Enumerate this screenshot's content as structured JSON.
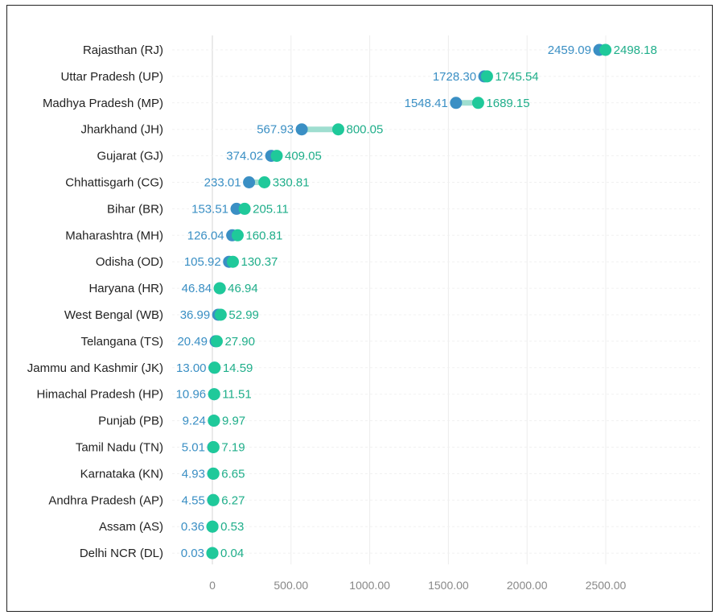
{
  "chart_data": {
    "type": "dumbbell",
    "title": "",
    "xlabel": "",
    "ylabel": "",
    "xlim": [
      0,
      2900
    ],
    "x_ticks": [
      0,
      500,
      1000,
      1500,
      2000,
      2500
    ],
    "x_tick_labels": [
      "0",
      "500.00",
      "1000.00",
      "1500.00",
      "2000.00",
      "2500.00"
    ],
    "grid": true,
    "colors": {
      "start": "#3a8fc4",
      "end": "#1fc99a",
      "connector": "#9fded0",
      "start_label": "#3a8fc4",
      "end_label": "#1fae8a"
    },
    "categories": [
      "Rajasthan (RJ)",
      "Uttar Pradesh (UP)",
      "Madhya Pradesh (MP)",
      "Jharkhand (JH)",
      "Gujarat (GJ)",
      "Chhattisgarh (CG)",
      "Bihar (BR)",
      "Maharashtra (MH)",
      "Odisha (OD)",
      "Haryana (HR)",
      "West Bengal (WB)",
      "Telangana (TS)",
      "Jammu and Kashmir (JK)",
      "Himachal Pradesh (HP)",
      "Punjab (PB)",
      "Tamil Nadu (TN)",
      "Karnataka (KN)",
      "Andhra Pradesh (AP)",
      "Assam (AS)",
      "Delhi NCR (DL)"
    ],
    "series": [
      {
        "values": [
          2459.09,
          1728.3,
          1548.41,
          567.93,
          374.02,
          233.01,
          153.51,
          126.04,
          105.92,
          46.84,
          36.99,
          20.49,
          13.0,
          10.96,
          9.24,
          5.01,
          4.93,
          4.55,
          0.36,
          0.03
        ],
        "labels": [
          "2459.09",
          "1728.30",
          "1548.41",
          "567.93",
          "374.02",
          "233.01",
          "153.51",
          "126.04",
          "105.92",
          "46.84",
          "36.99",
          "20.49",
          "13.00",
          "10.96",
          "9.24",
          "5.01",
          "4.93",
          "4.55",
          "0.36",
          "0.03"
        ]
      },
      {
        "values": [
          2498.18,
          1745.54,
          1689.15,
          800.05,
          409.05,
          330.81,
          205.11,
          160.81,
          130.37,
          46.94,
          52.99,
          27.9,
          14.59,
          11.51,
          9.97,
          7.19,
          6.65,
          6.27,
          0.53,
          0.04
        ],
        "labels": [
          "2498.18",
          "1745.54",
          "1689.15",
          "800.05",
          "409.05",
          "330.81",
          "205.11",
          "160.81",
          "130.37",
          "46.94",
          "52.99",
          "27.90",
          "14.59",
          "11.51",
          "9.97",
          "7.19",
          "6.65",
          "6.27",
          "0.53",
          "0.04"
        ]
      }
    ]
  }
}
